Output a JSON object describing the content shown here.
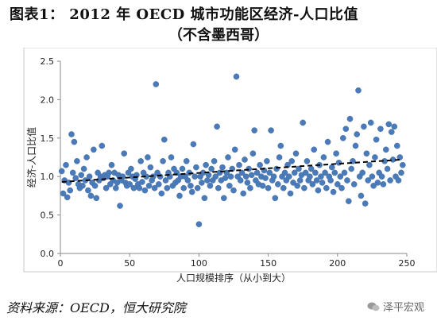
{
  "header": {
    "title": "图表1：  2012 年 OECD 城市功能区经济-人口比值",
    "subtitle": "（不含墨西哥）"
  },
  "footer": {
    "source": "资料来源：OECD，恒大研究院",
    "watermark": "泽平宏观"
  },
  "chart_data": {
    "type": "scatter",
    "title": "",
    "xlabel": "人口规模排序（从小到大）",
    "ylabel": "经济-人口比值",
    "xlim": [
      0,
      250
    ],
    "ylim": [
      0,
      2.5
    ],
    "x_ticks": [
      "0",
      "50",
      "100",
      "150",
      "200",
      "250"
    ],
    "y_ticks": [
      "0.0",
      "0.5",
      "1.0",
      "1.5",
      "2.0",
      "2.5"
    ],
    "grid": false,
    "legend": "none",
    "marker_color": "#4a7ab8",
    "trendline": {
      "style": "dashed",
      "color": "#000000",
      "start": [
        1,
        0.93
      ],
      "end": [
        246,
        1.22
      ]
    },
    "series": [
      {
        "values": [
          [
            1,
            1.07
          ],
          [
            2,
            0.78
          ],
          [
            3,
            0.95
          ],
          [
            4,
            1.15
          ],
          [
            5,
            0.73
          ],
          [
            6,
            0.92
          ],
          [
            7,
            0.82
          ],
          [
            8,
            1.55
          ],
          [
            9,
            1.05
          ],
          [
            10,
            1.45
          ],
          [
            11,
            0.98
          ],
          [
            12,
            1.2
          ],
          [
            13,
            0.9
          ],
          [
            14,
            0.85
          ],
          [
            15,
            1.02
          ],
          [
            16,
            0.88
          ],
          [
            17,
            1.1
          ],
          [
            18,
            0.95
          ],
          [
            19,
            1.25
          ],
          [
            20,
            0.82
          ],
          [
            21,
            1.0
          ],
          [
            22,
            0.75
          ],
          [
            23,
            0.92
          ],
          [
            24,
            1.35
          ],
          [
            25,
            0.88
          ],
          [
            26,
            0.72
          ],
          [
            27,
            1.05
          ],
          [
            28,
            0.95
          ],
          [
            29,
            1.0
          ],
          [
            30,
            1.4
          ],
          [
            31,
            0.98
          ],
          [
            32,
            1.02
          ],
          [
            33,
            0.85
          ],
          [
            34,
            1.0
          ],
          [
            35,
            1.05
          ],
          [
            36,
            0.9
          ],
          [
            37,
            1.15
          ],
          [
            38,
            0.95
          ],
          [
            39,
            1.05
          ],
          [
            40,
            0.85
          ],
          [
            41,
            0.92
          ],
          [
            42,
            1.02
          ],
          [
            43,
            0.62
          ],
          [
            44,
            0.95
          ],
          [
            45,
            1.0
          ],
          [
            46,
            1.3
          ],
          [
            47,
            0.92
          ],
          [
            48,
            0.88
          ],
          [
            49,
            1.05
          ],
          [
            50,
            0.9
          ],
          [
            51,
            1.1
          ],
          [
            52,
            1.0
          ],
          [
            53,
            0.85
          ],
          [
            54,
            0.97
          ],
          [
            55,
            1.02
          ],
          [
            56,
            0.9
          ],
          [
            57,
            0.85
          ],
          [
            58,
            1.2
          ],
          [
            59,
            0.93
          ],
          [
            60,
            1.05
          ],
          [
            61,
            0.82
          ],
          [
            62,
            1.0
          ],
          [
            63,
            1.25
          ],
          [
            64,
            0.88
          ],
          [
            65,
            1.12
          ],
          [
            66,
            0.95
          ],
          [
            67,
            1.0
          ],
          [
            68,
            0.85
          ],
          [
            69,
            2.2
          ],
          [
            70,
            1.05
          ],
          [
            71,
            0.9
          ],
          [
            72,
            1.0
          ],
          [
            73,
            0.78
          ],
          [
            74,
            1.2
          ],
          [
            75,
            1.48
          ],
          [
            76,
            0.95
          ],
          [
            77,
            0.85
          ],
          [
            78,
            1.05
          ],
          [
            79,
            1.0
          ],
          [
            80,
            1.25
          ],
          [
            81,
            0.88
          ],
          [
            82,
            1.1
          ],
          [
            83,
            0.92
          ],
          [
            84,
            1.05
          ],
          [
            85,
            0.95
          ],
          [
            86,
            0.75
          ],
          [
            87,
            1.0
          ],
          [
            88,
            1.1
          ],
          [
            89,
            0.85
          ],
          [
            90,
            1.0
          ],
          [
            91,
            1.2
          ],
          [
            92,
            0.95
          ],
          [
            93,
            1.05
          ],
          [
            94,
            0.88
          ],
          [
            95,
            0.8
          ],
          [
            96,
            1.42
          ],
          [
            97,
            1.0
          ],
          [
            98,
            1.12
          ],
          [
            99,
            0.85
          ],
          [
            100,
            0.38
          ],
          [
            101,
            1.0
          ],
          [
            102,
            0.92
          ],
          [
            103,
            1.05
          ],
          [
            104,
            0.72
          ],
          [
            105,
            1.15
          ],
          [
            106,
            0.95
          ],
          [
            107,
            1.02
          ],
          [
            108,
            0.88
          ],
          [
            109,
            1.1
          ],
          [
            110,
            0.95
          ],
          [
            111,
            1.2
          ],
          [
            112,
            1.0
          ],
          [
            113,
            1.65
          ],
          [
            114,
            0.85
          ],
          [
            115,
            1.05
          ],
          [
            116,
            0.95
          ],
          [
            117,
            1.12
          ],
          [
            118,
            0.72
          ],
          [
            119,
            0.98
          ],
          [
            120,
            1.05
          ],
          [
            121,
            1.25
          ],
          [
            122,
            0.88
          ],
          [
            123,
            1.0
          ],
          [
            124,
            1.1
          ],
          [
            125,
            0.82
          ],
          [
            126,
            1.35
          ],
          [
            127,
            2.3
          ],
          [
            128,
            1.0
          ],
          [
            129,
            1.15
          ],
          [
            130,
            0.95
          ],
          [
            131,
            1.05
          ],
          [
            132,
            0.78
          ],
          [
            133,
            1.22
          ],
          [
            134,
            1.0
          ],
          [
            135,
            0.92
          ],
          [
            136,
            1.1
          ],
          [
            137,
            0.85
          ],
          [
            138,
            1.02
          ],
          [
            139,
            1.3
          ],
          [
            140,
            1.6
          ],
          [
            141,
            0.95
          ],
          [
            142,
            1.05
          ],
          [
            143,
            0.9
          ],
          [
            144,
            1.15
          ],
          [
            145,
            1.0
          ],
          [
            146,
            0.88
          ],
          [
            147,
            1.08
          ],
          [
            148,
            0.98
          ],
          [
            149,
            1.2
          ],
          [
            150,
            0.85
          ],
          [
            151,
            1.05
          ],
          [
            152,
            1.6
          ],
          [
            153,
            0.95
          ],
          [
            154,
            1.0
          ],
          [
            155,
            0.72
          ],
          [
            156,
            1.1
          ],
          [
            157,
            0.9
          ],
          [
            158,
            1.25
          ],
          [
            159,
            1.4
          ],
          [
            160,
            1.0
          ],
          [
            161,
            0.85
          ],
          [
            162,
            1.05
          ],
          [
            163,
            0.95
          ],
          [
            164,
            1.15
          ],
          [
            165,
            1.0
          ],
          [
            166,
            0.78
          ],
          [
            167,
            1.2
          ],
          [
            168,
            0.92
          ],
          [
            169,
            1.05
          ],
          [
            170,
            1.3
          ],
          [
            171,
            0.88
          ],
          [
            172,
            1.1
          ],
          [
            173,
            0.95
          ],
          [
            174,
            1.02
          ],
          [
            175,
            1.7
          ],
          [
            176,
            0.85
          ],
          [
            177,
            1.05
          ],
          [
            178,
            1.2
          ],
          [
            179,
            0.95
          ],
          [
            180,
            1.0
          ],
          [
            181,
            1.1
          ],
          [
            182,
            0.9
          ],
          [
            183,
            1.35
          ],
          [
            184,
            1.05
          ],
          [
            185,
            0.95
          ],
          [
            186,
            0.82
          ],
          [
            187,
            1.15
          ],
          [
            188,
            1.0
          ],
          [
            189,
            0.92
          ],
          [
            190,
            1.25
          ],
          [
            191,
            1.05
          ],
          [
            192,
            0.85
          ],
          [
            193,
            1.45
          ],
          [
            194,
            1.0
          ],
          [
            195,
            0.95
          ],
          [
            196,
            1.12
          ],
          [
            197,
            0.8
          ],
          [
            198,
            1.05
          ],
          [
            199,
            1.3
          ],
          [
            200,
            0.9
          ],
          [
            201,
            1.18
          ],
          [
            202,
            1.0
          ],
          [
            203,
            0.85
          ],
          [
            204,
            1.5
          ],
          [
            205,
            1.05
          ],
          [
            206,
            1.62
          ],
          [
            207,
            0.95
          ],
          [
            208,
            0.68
          ],
          [
            209,
            1.75
          ],
          [
            210,
            1.1
          ],
          [
            211,
            1.2
          ],
          [
            212,
            0.9
          ],
          [
            213,
            1.4
          ],
          [
            214,
            1.55
          ],
          [
            215,
            2.12
          ],
          [
            216,
            1.0
          ],
          [
            217,
            0.75
          ],
          [
            218,
            1.05
          ],
          [
            219,
            1.65
          ],
          [
            220,
            0.65
          ],
          [
            221,
            1.3
          ],
          [
            222,
            0.95
          ],
          [
            223,
            1.15
          ],
          [
            224,
            1.7
          ],
          [
            225,
            1.0
          ],
          [
            226,
            0.88
          ],
          [
            227,
            1.25
          ],
          [
            228,
            1.48
          ],
          [
            229,
            0.92
          ],
          [
            230,
            1.05
          ],
          [
            231,
            1.62
          ],
          [
            232,
            1.0
          ],
          [
            233,
            0.9
          ],
          [
            234,
            1.2
          ],
          [
            235,
            1.35
          ],
          [
            236,
            1.1
          ],
          [
            237,
            1.68
          ],
          [
            238,
            0.95
          ],
          [
            239,
            1.58
          ],
          [
            240,
            1.22
          ],
          [
            241,
            1.65
          ],
          [
            242,
            1.0
          ],
          [
            243,
            1.4
          ],
          [
            244,
            0.95
          ],
          [
            245,
            1.25
          ],
          [
            246,
            1.05
          ],
          [
            247,
            1.15
          ]
        ]
      }
    ]
  }
}
